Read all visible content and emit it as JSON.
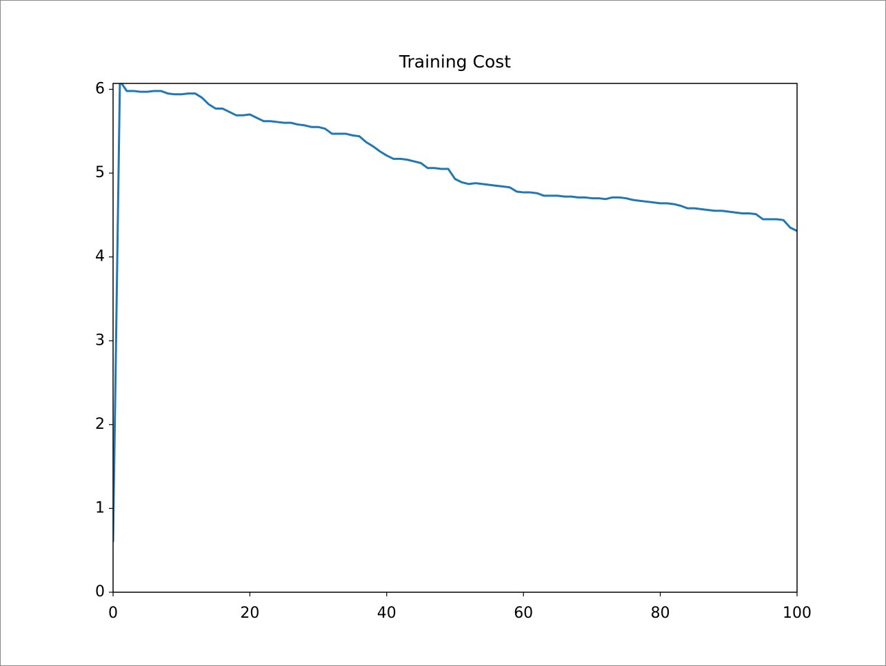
{
  "chart_data": {
    "type": "line",
    "title": "Training Cost",
    "x": [
      0,
      1,
      2,
      3,
      4,
      5,
      6,
      7,
      8,
      9,
      10,
      11,
      12,
      13,
      14,
      15,
      16,
      17,
      18,
      19,
      20,
      21,
      22,
      23,
      24,
      25,
      26,
      27,
      28,
      29,
      30,
      31,
      32,
      33,
      34,
      35,
      36,
      37,
      38,
      39,
      40,
      41,
      42,
      43,
      44,
      45,
      46,
      47,
      48,
      49,
      50,
      51,
      52,
      53,
      54,
      55,
      56,
      57,
      58,
      59,
      60,
      61,
      62,
      63,
      64,
      65,
      66,
      67,
      68,
      69,
      70,
      71,
      72,
      73,
      74,
      75,
      76,
      77,
      78,
      79,
      80,
      81,
      82,
      83,
      84,
      85,
      86,
      87,
      88,
      89,
      90,
      91,
      92,
      93,
      94,
      95,
      96,
      97,
      98,
      99,
      100
    ],
    "series": [
      {
        "color": "#1f77b4",
        "values": [
          0.6,
          6.1,
          5.98,
          5.98,
          5.97,
          5.97,
          5.98,
          5.98,
          5.95,
          5.94,
          5.94,
          5.95,
          5.95,
          5.9,
          5.82,
          5.77,
          5.77,
          5.73,
          5.69,
          5.69,
          5.7,
          5.66,
          5.62,
          5.62,
          5.61,
          5.6,
          5.6,
          5.58,
          5.57,
          5.55,
          5.55,
          5.53,
          5.47,
          5.47,
          5.47,
          5.45,
          5.44,
          5.37,
          5.32,
          5.26,
          5.21,
          5.17,
          5.17,
          5.16,
          5.14,
          5.12,
          5.06,
          5.06,
          5.05,
          5.05,
          4.93,
          4.89,
          4.87,
          4.88,
          4.87,
          4.86,
          4.85,
          4.84,
          4.83,
          4.78,
          4.77,
          4.77,
          4.76,
          4.73,
          4.73,
          4.73,
          4.72,
          4.72,
          4.71,
          4.71,
          4.7,
          4.7,
          4.69,
          4.71,
          4.71,
          4.7,
          4.68,
          4.67,
          4.66,
          4.65,
          4.64,
          4.64,
          4.63,
          4.61,
          4.58,
          4.58,
          4.57,
          4.56,
          4.55,
          4.55,
          4.54,
          4.53,
          4.52,
          4.52,
          4.51,
          4.45,
          4.45,
          4.45,
          4.44,
          4.35,
          4.31
        ]
      }
    ],
    "xlim": [
      0,
      100
    ],
    "xticks": [
      0,
      20,
      40,
      60,
      80,
      100
    ],
    "ylim": [
      0,
      6.07
    ],
    "yticks": [
      0,
      1,
      2,
      3,
      4,
      5,
      6
    ],
    "grid": false
  }
}
